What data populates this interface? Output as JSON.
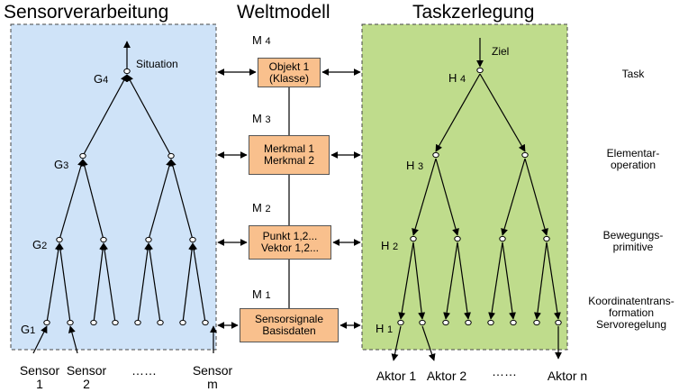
{
  "headers": {
    "left": "Sensorverarbeitung",
    "middle": "Weltmodell",
    "right": "Taskzerlegung"
  },
  "left_panel": {
    "top_label": "Situation",
    "levels": [
      {
        "letter": "G",
        "sub": "4"
      },
      {
        "letter": "G",
        "sub": "3"
      },
      {
        "letter": "G",
        "sub": "2"
      },
      {
        "letter": "G",
        "sub": "1"
      }
    ],
    "sensors": [
      {
        "line1": "Sensor",
        "line2": "1"
      },
      {
        "line1": "Sensor",
        "line2": "2"
      },
      {
        "line1": "Sensor",
        "line2": "m"
      }
    ],
    "ellipsis": "……",
    "fill": "#cfe3f8"
  },
  "world_model": {
    "levels": [
      {
        "letter": "M",
        "sub": "4",
        "lines": [
          "Objekt 1",
          "(Klasse)"
        ]
      },
      {
        "letter": "M",
        "sub": "3",
        "lines": [
          "Merkmal 1",
          "Merkmal 2"
        ]
      },
      {
        "letter": "M",
        "sub": "2",
        "lines": [
          "Punkt 1,2...",
          "Vektor 1,2..."
        ]
      },
      {
        "letter": "M",
        "sub": "1",
        "lines": [
          "Sensorsignale",
          "Basisdaten"
        ]
      }
    ],
    "box_fill": "#f9c08d"
  },
  "right_panel": {
    "top_label": "Ziel",
    "levels": [
      {
        "letter": "H",
        "sub": "4"
      },
      {
        "letter": "H",
        "sub": "3"
      },
      {
        "letter": "H",
        "sub": "2"
      },
      {
        "letter": "H",
        "sub": "1"
      }
    ],
    "actors": [
      "Aktor 1",
      "Aktor 2",
      "Aktor n"
    ],
    "ellipsis": "……",
    "fill": "#bfdc8c"
  },
  "side_labels": [
    {
      "lines": [
        "Task"
      ]
    },
    {
      "lines": [
        "Elementar-",
        "operation"
      ]
    },
    {
      "lines": [
        "Bewegungs-",
        "primitive"
      ]
    },
    {
      "lines": [
        "Koordinatentrans-",
        "formation",
        "Servoregelung"
      ]
    }
  ]
}
